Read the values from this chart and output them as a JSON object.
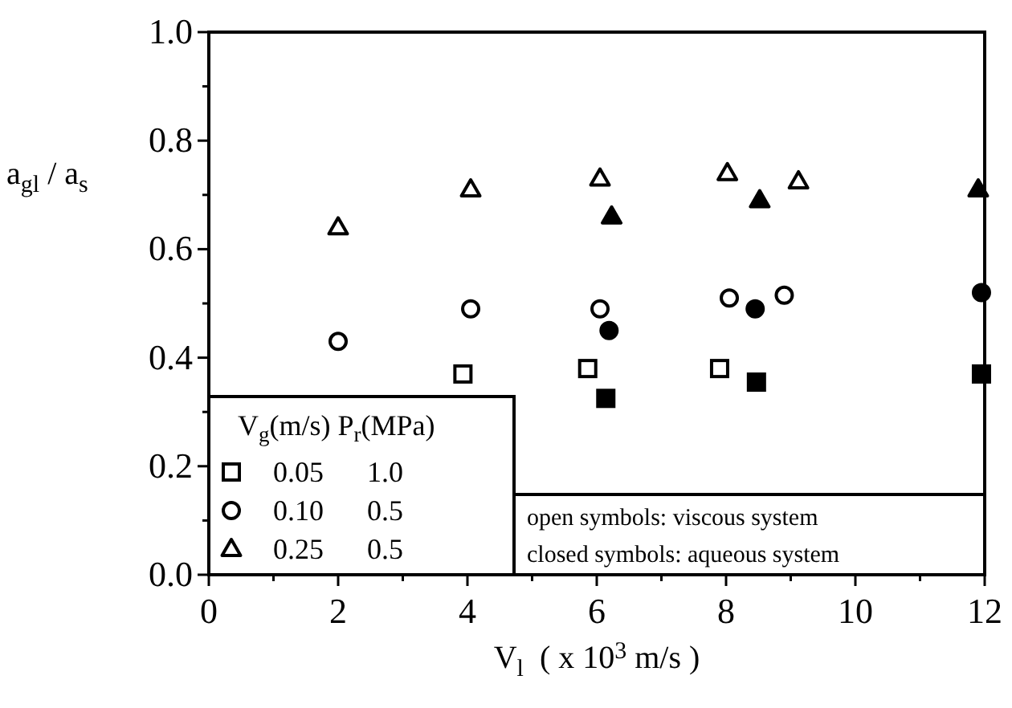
{
  "chart_data": {
    "type": "scatter",
    "xlabel": "V$_{l}$  ( x 10$^{3}$ m/s )",
    "ylabel": "a$_{gl}$ / a$_{s}$",
    "legend_title": "V$_{g}$(m/s) P$_{r}$(MPa)",
    "legend": "bottom left",
    "grid": false,
    "xlim": [
      0,
      12
    ],
    "xticks": [
      0,
      {
        "value": 1,
        "label": null
      },
      2,
      {
        "value": 3,
        "label": null
      },
      4,
      {
        "value": 5,
        "label": null
      },
      6,
      {
        "value": 7,
        "label": null
      },
      8,
      {
        "value": 9,
        "label": null
      },
      10,
      {
        "value": 11,
        "label": null
      },
      12
    ],
    "ylim": [
      0,
      1
    ],
    "yticks": [
      {
        "value": 0,
        "label": "0.0"
      },
      {
        "value": 0.1,
        "label": null
      },
      {
        "value": 0.2,
        "label": "0.2"
      },
      {
        "value": 0.3,
        "label": null
      },
      {
        "value": 0.4,
        "label": "0.4"
      },
      {
        "value": 0.5,
        "label": null
      },
      {
        "value": 0.6,
        "label": "0.6"
      },
      {
        "value": 0.7,
        "label": null
      },
      {
        "value": 0.8,
        "label": "0.8"
      },
      {
        "value": 0.9,
        "label": null
      },
      {
        "value": 1,
        "label": "1.0"
      }
    ],
    "annotations": [
      "open symbols: viscous system",
      "closed symbols: aqueous system"
    ],
    "series": [
      {
        "name": "0.05      1.0",
        "color": "#ffffff",
        "marker": "square",
        "x": [
          3.93,
          5.86,
          7.9
        ],
        "values": [
          0.37,
          0.38,
          0.38
        ]
      },
      {
        "name": "0.10      0.5",
        "color": "#ffffff",
        "marker": "circle",
        "x": [
          2.0,
          4.05,
          6.05,
          8.05,
          8.9
        ],
        "values": [
          0.43,
          0.49,
          0.49,
          0.51,
          0.515
        ]
      },
      {
        "name": "0.25      0.5",
        "color": "#ffffff",
        "marker": "triangle",
        "x": [
          2.0,
          4.05,
          6.05,
          8.02,
          9.12
        ],
        "values": [
          0.64,
          0.71,
          0.73,
          0.74,
          0.725
        ]
      },
      {
        "color": "#000000",
        "marker": "square",
        "x": [
          6.14,
          8.47,
          11.95
        ],
        "values": [
          0.325,
          0.355,
          0.37
        ]
      },
      {
        "color": "#000000",
        "marker": "circle",
        "x": [
          6.19,
          8.45,
          11.95
        ],
        "values": [
          0.45,
          0.49,
          0.52
        ]
      },
      {
        "color": "#000000",
        "marker": "triangle",
        "x": [
          6.23,
          8.52,
          11.9
        ],
        "values": [
          0.66,
          0.69,
          0.71
        ]
      }
    ]
  }
}
